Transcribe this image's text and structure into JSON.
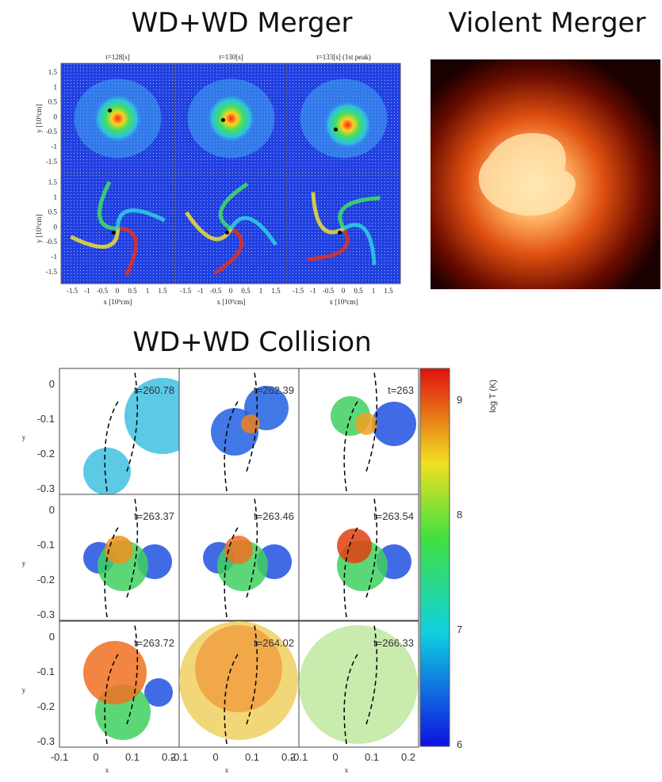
{
  "merger": {
    "title": "WD+WD Merger",
    "panel_labels": [
      "t=128[s]",
      "t=130[s]",
      "t=133[s] (1st peak)"
    ],
    "y_label": "y [10⁹cm]",
    "x_label": "x [10⁹cm]",
    "y_ticks": [
      "1.5",
      "1",
      "0.5",
      "0",
      "-0.5",
      "-1",
      "-1.5"
    ],
    "x_ticks": [
      "-1.5",
      "-1",
      "-0.5",
      "0",
      "0.5",
      "1",
      "1.5"
    ]
  },
  "violent": {
    "title": "Violent Merger"
  },
  "collision": {
    "title": "WD+WD Collision",
    "panel_labels": [
      "t=260.78",
      "t=262.39",
      "t=263",
      "t=263.37",
      "t=263.46",
      "t=263.54",
      "t=263.72",
      "t=264.02",
      "t=266.33"
    ],
    "y_label": "y",
    "x_label": "x",
    "y_ticks": [
      "0",
      "-0.1",
      "-0.2",
      "-0.3"
    ],
    "x_ticks": [
      "-0.1",
      "0",
      "0.1",
      "0.2"
    ],
    "colorbar_label": "log T (K)",
    "colorbar_ticks": [
      "6",
      "7",
      "8",
      "9"
    ]
  }
}
